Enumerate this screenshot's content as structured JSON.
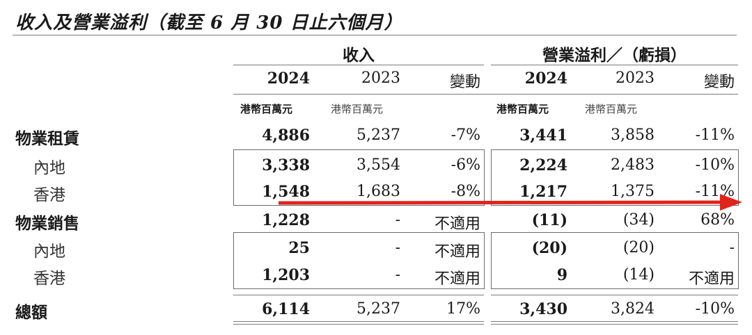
{
  "title": "收入及營業溢利（截至 6 月 30 日止六個月）",
  "groups": {
    "revenue": "收入",
    "profit": "營業溢利／（虧損）"
  },
  "years": [
    "2024",
    "2023",
    "變動",
    "2024",
    "2023",
    "變動"
  ],
  "units": [
    "港幣百萬元",
    "港幣百萬元",
    "港幣百萬元",
    "港幣百萬元"
  ],
  "rows": [
    {
      "label": "物業租賃",
      "cells": [
        "4,886",
        "5,237",
        "-7%",
        "3,441",
        "3,858",
        "-11%"
      ]
    },
    {
      "label": "內地",
      "cells": [
        "3,338",
        "3,554",
        "-6%",
        "2,224",
        "2,483",
        "-10%"
      ]
    },
    {
      "label": "香港",
      "cells": [
        "1,548",
        "1,683",
        "-8%",
        "1,217",
        "1,375",
        "-11%"
      ]
    },
    {
      "label": "物業銷售",
      "cells": [
        "1,228",
        "-",
        "不適用",
        "(11)",
        "(34)",
        "68%"
      ]
    },
    {
      "label": "內地",
      "cells": [
        "25",
        "-",
        "不適用",
        "(20)",
        "(20)",
        "-"
      ]
    },
    {
      "label": "香港",
      "cells": [
        "1,203",
        "-",
        "不適用",
        "9",
        "(14)",
        "不適用"
      ]
    },
    {
      "label": "總額",
      "cells": [
        "6,114",
        "5,237",
        "17%",
        "3,430",
        "3,824",
        "-10%"
      ]
    }
  ],
  "colors": {
    "arrow": "#e0241b",
    "rule": "#7a7a7a"
  }
}
